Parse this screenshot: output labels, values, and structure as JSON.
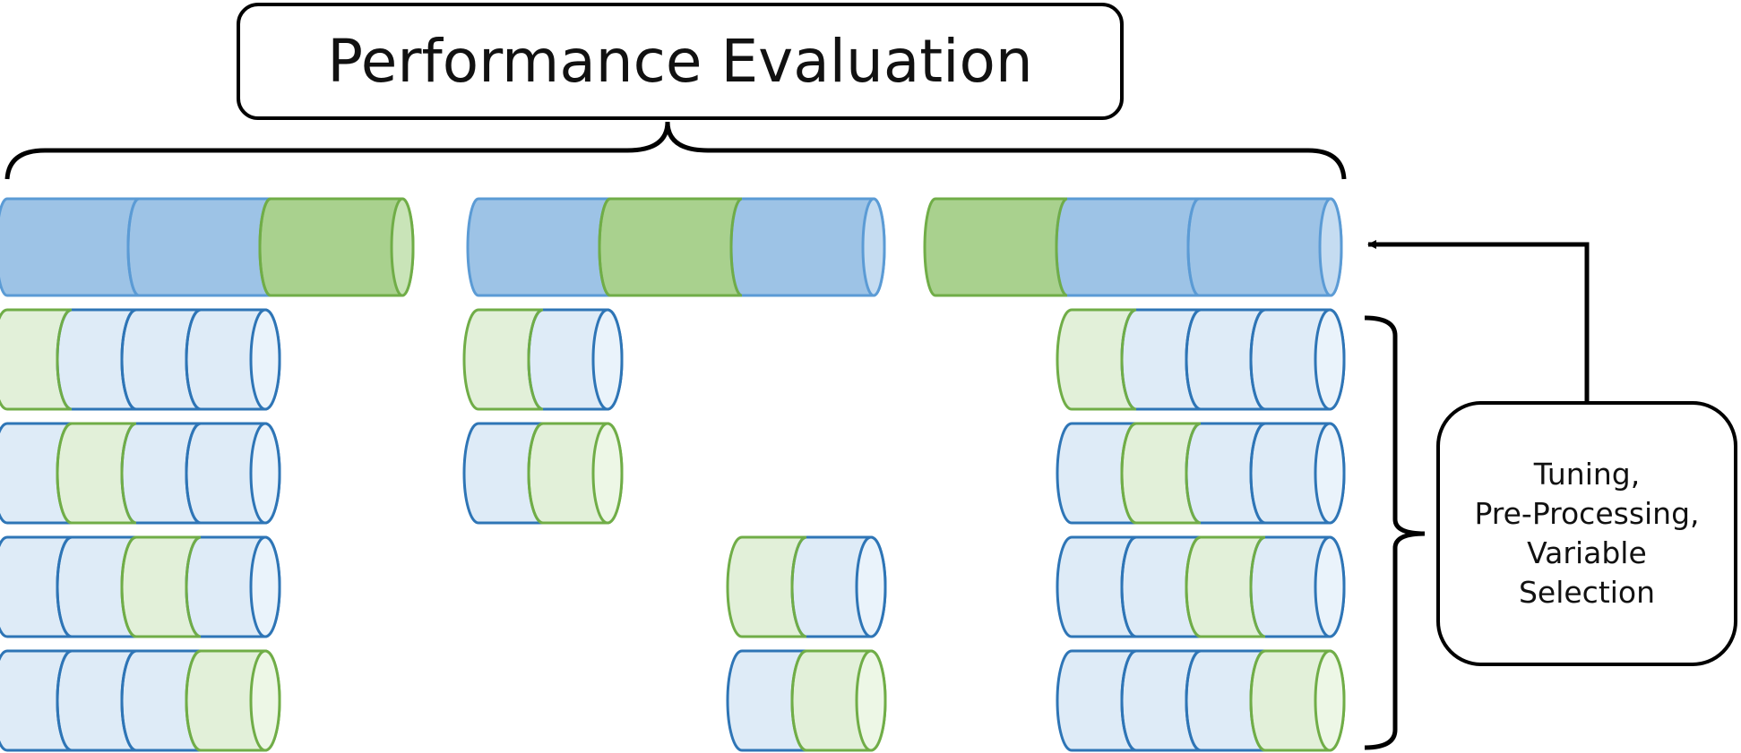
{
  "title": "Performance Evaluation",
  "side_label": [
    "Tuning,",
    "Pre-Processing,",
    "Variable",
    "Selection"
  ],
  "colors": {
    "outer_train": "#9dc3e6",
    "outer_test": "#a9d18e",
    "outer_train_stroke": "#5b9bd5",
    "outer_test_stroke": "#70ad47",
    "inner_train": "#deebf7",
    "inner_test": "#e2f0d9",
    "inner_train_stroke": "#2e75b6",
    "inner_test_stroke": "#70ad47",
    "line": "#000000"
  },
  "outer_resamples": [
    {
      "segments": 3,
      "test_index": 2
    },
    {
      "segments": 3,
      "test_index": 1
    },
    {
      "segments": 3,
      "test_index": 0
    }
  ],
  "inner_groups": [
    {
      "outer": 0,
      "segments": 4,
      "test_indices": [
        0,
        1,
        2,
        3
      ]
    },
    {
      "outer": 1,
      "segments": 2,
      "test_indices": [
        0,
        1,
        null,
        null
      ]
    },
    {
      "outer": 1,
      "segments": 2,
      "test_indices": [
        null,
        null,
        0,
        1
      ]
    },
    {
      "outer": 2,
      "segments": 4,
      "test_indices": [
        0,
        1,
        2,
        3
      ]
    }
  ]
}
